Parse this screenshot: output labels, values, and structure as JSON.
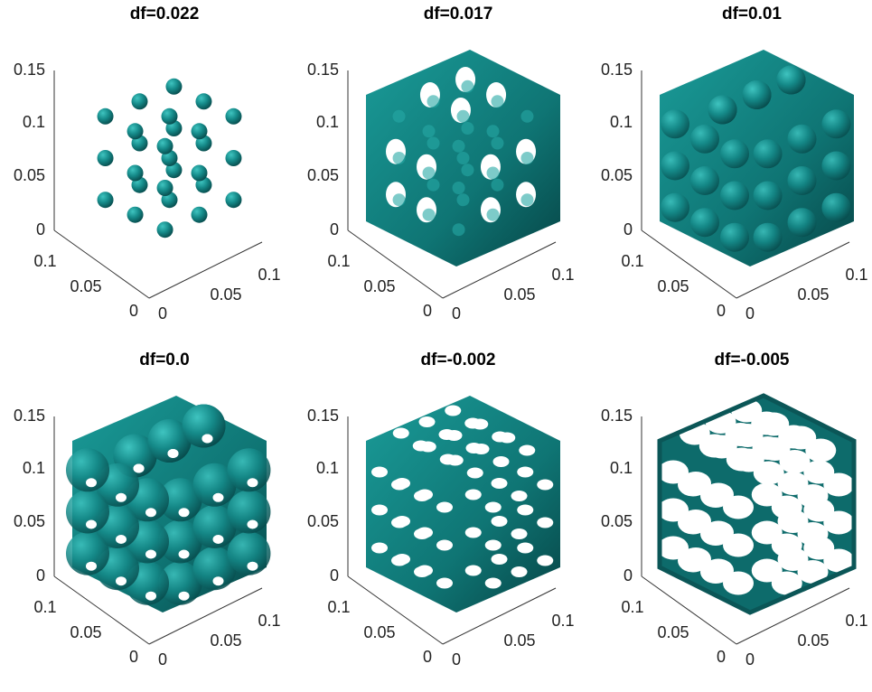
{
  "panels": [
    {
      "title": "df=0.022",
      "zticks": [
        "0",
        "0.05",
        "0.1",
        "0.15"
      ],
      "yticks": [
        "0",
        "0.05",
        "0.1"
      ],
      "xticks": [
        "0",
        "0.05",
        "0.1"
      ]
    },
    {
      "title": "df=0.017",
      "zticks": [
        "0",
        "0.05",
        "0.1",
        "0.15"
      ],
      "yticks": [
        "0",
        "0.05",
        "0.1"
      ],
      "xticks": [
        "0",
        "0.05",
        "0.1"
      ]
    },
    {
      "title": "df=0.01",
      "zticks": [
        "0",
        "0.05",
        "0.1",
        "0.15"
      ],
      "yticks": [
        "0",
        "0.05",
        "0.1"
      ],
      "xticks": [
        "0",
        "0.05",
        "0.1"
      ]
    },
    {
      "title": "df=0.0",
      "zticks": [
        "0",
        "0.05",
        "0.1",
        "0.15"
      ],
      "yticks": [
        "0",
        "0.05",
        "0.1"
      ],
      "xticks": [
        "0",
        "0.05",
        "0.1"
      ]
    },
    {
      "title": "df=-0.002",
      "zticks": [
        "0",
        "0.05",
        "0.1",
        "0.15"
      ],
      "yticks": [
        "0",
        "0.05",
        "0.1"
      ],
      "xticks": [
        "0",
        "0.05",
        "0.1"
      ]
    },
    {
      "title": "df=-0.005",
      "zticks": [
        "0",
        "0.05",
        "0.1",
        "0.15"
      ],
      "yticks": [
        "0",
        "0.05",
        "0.1"
      ],
      "xticks": [
        "0",
        "0.05",
        "0.1"
      ]
    }
  ]
}
